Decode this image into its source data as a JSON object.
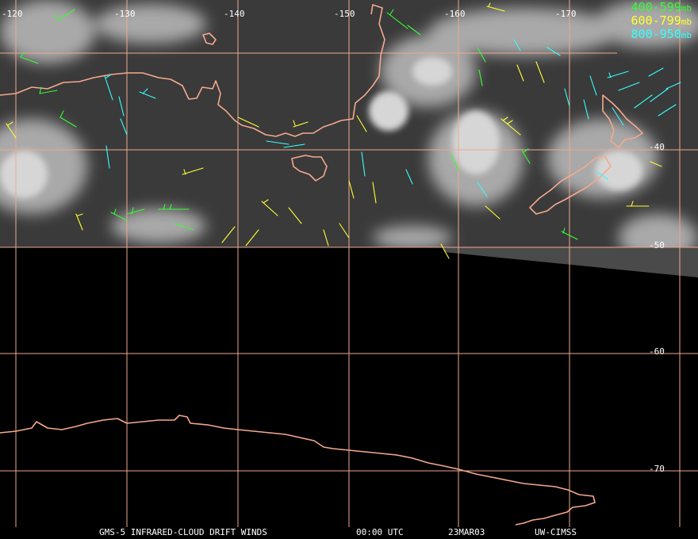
{
  "colors": {
    "background": "#000000",
    "grid": "#f0a890",
    "coast": "#f5a98d",
    "label": "#ffffff"
  },
  "longitude_labels": [
    "-120",
    "-130",
    "-140",
    "-150",
    "-160",
    "-170"
  ],
  "latitude_labels": [
    "-40",
    "-50",
    "-60",
    "-70"
  ],
  "legend": [
    {
      "range": "400-599",
      "unit": "mb",
      "color": "#33ff33"
    },
    {
      "range": "600-799",
      "unit": "mb",
      "color": "#ffff33"
    },
    {
      "range": "800-950",
      "unit": "mb",
      "color": "#33ffff"
    }
  ],
  "footer": {
    "product": "GMS-5 INFRARED-CLOUD DRIFT WINDS",
    "time": "00:00 UTC",
    "date": "23MAR03",
    "source": "UW-CIMSS"
  }
}
